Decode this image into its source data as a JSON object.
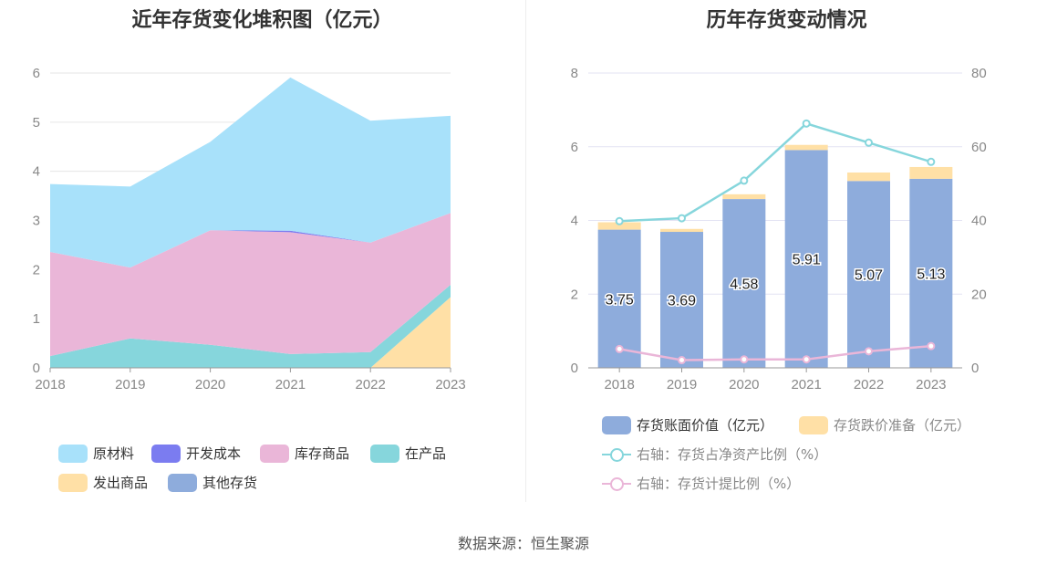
{
  "chart_data": [
    {
      "type": "area",
      "title": "近年存货变化堆积图（亿元）",
      "x": [
        "2018",
        "2019",
        "2020",
        "2021",
        "2022",
        "2023"
      ],
      "ylim": [
        0,
        6
      ],
      "yticks": [
        "0",
        "1",
        "2",
        "3",
        "4",
        "5",
        "6"
      ],
      "series": [
        {
          "name": "原材料",
          "color": "#a8e1fa",
          "values": [
            1.38,
            1.65,
            1.8,
            3.12,
            2.48,
            1.98
          ]
        },
        {
          "name": "开发成本",
          "color": "#7b7cf0",
          "values": [
            0,
            0,
            0,
            0.03,
            0,
            0
          ]
        },
        {
          "name": "库存商品",
          "color": "#eab6d8",
          "values": [
            2.12,
            1.44,
            2.33,
            2.48,
            2.23,
            1.46
          ]
        },
        {
          "name": "在产品",
          "color": "#86d6dc",
          "values": [
            0.24,
            0.6,
            0.47,
            0.28,
            0.32,
            0.25
          ]
        },
        {
          "name": "发出商品",
          "color": "#ffe0a6",
          "values": [
            0,
            0,
            0,
            0,
            0,
            1.44
          ]
        },
        {
          "name": "其他存货",
          "color": "#8eacdc",
          "values": [
            0,
            0,
            0,
            0,
            0,
            0
          ]
        }
      ]
    },
    {
      "type": "bar",
      "title": "历年存货变动情况",
      "categories": [
        "2018",
        "2019",
        "2020",
        "2021",
        "2022",
        "2023"
      ],
      "ylim": [
        0,
        8
      ],
      "yticks": [
        "0",
        "2",
        "4",
        "6",
        "8"
      ],
      "y2lim": [
        0,
        80
      ],
      "y2ticks": [
        "0",
        "20",
        "40",
        "60",
        "80"
      ],
      "series": [
        {
          "name": "存货账面价值（亿元）",
          "kind": "bar",
          "color": "#8eacdc",
          "values": [
            3.75,
            3.69,
            4.58,
            5.91,
            5.07,
            5.13
          ],
          "labels": [
            "3.75",
            "3.69",
            "4.58",
            "5.91",
            "5.07",
            "5.13"
          ]
        },
        {
          "name": "存货跌价准备（亿元）",
          "kind": "bar",
          "color": "#ffe0a6",
          "values": [
            0.2,
            0.08,
            0.13,
            0.14,
            0.23,
            0.32
          ]
        },
        {
          "name": "右轴：存货占净资产比例（%）",
          "kind": "line",
          "axis": "right",
          "color": "#86d6dc",
          "values": [
            39.8,
            40.6,
            50.8,
            66.3,
            61.1,
            55.9
          ]
        },
        {
          "name": "右轴：存货计提比例（%）",
          "kind": "line",
          "axis": "right",
          "color": "#eab6d8",
          "values": [
            5.1,
            2.1,
            2.3,
            2.3,
            4.5,
            5.9
          ]
        }
      ]
    }
  ],
  "source": "数据来源：恒生聚源"
}
